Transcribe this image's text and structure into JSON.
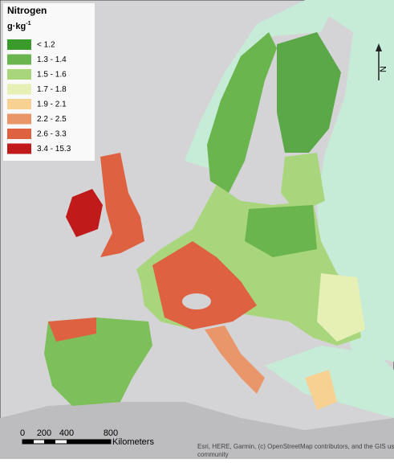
{
  "legend": {
    "title": "Nitrogen",
    "unit": {
      "base": "g·kg",
      "exponent": "-1"
    },
    "items": [
      {
        "label": "< 1.2",
        "color": "#3a9a2c"
      },
      {
        "label": "1.3 - 1.4",
        "color": "#6bb54e"
      },
      {
        "label": "1.5 - 1.6",
        "color": "#a9d67c"
      },
      {
        "label": "1.7 - 1.8",
        "color": "#e6efb4"
      },
      {
        "label": "1.9 - 2.1",
        "color": "#f6d191"
      },
      {
        "label": "2.2 - 2.5",
        "color": "#e9966a"
      },
      {
        "label": "2.6 - 3.3",
        "color": "#de6241"
      },
      {
        "label": "3.4 - 15.3",
        "color": "#c01a1a"
      }
    ]
  },
  "scale_bar": {
    "labels": [
      "0",
      "200",
      "400",
      "800"
    ],
    "unit": "Kilometers"
  },
  "north_arrow": {
    "label": "N"
  },
  "attribution": [
    "Esri, HERE, Garmin, (c) OpenStreetMap contributors, and the GIS user",
    "community"
  ]
}
